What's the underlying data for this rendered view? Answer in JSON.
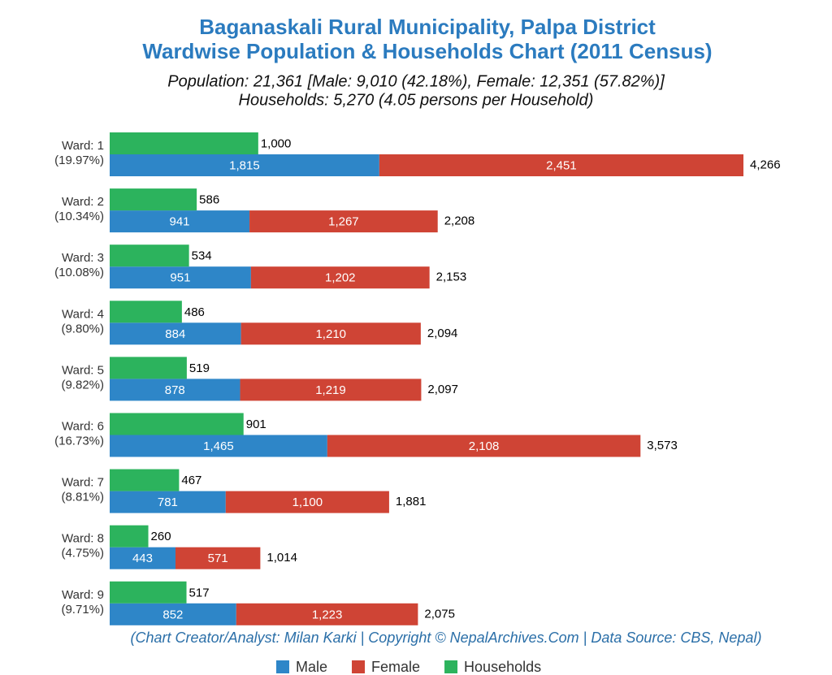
{
  "chart_data": {
    "type": "bar",
    "title": [
      "Baganaskali Rural Municipality, Palpa District",
      "Wardwise Population & Households Chart (2011 Census)"
    ],
    "subtitle": [
      "Population: 21,361 [Male: 9,010 (42.18%), Female: 12,351 (57.82%)]",
      "Households: 5,270 (4.05 persons per Household)"
    ],
    "caption": "(Chart Creator/Analyst: Milan Karki | Copyright © NepalArchives.Com | Data Source: CBS, Nepal)",
    "categories": [
      "Ward: 1",
      "Ward: 2",
      "Ward: 3",
      "Ward: 4",
      "Ward: 5",
      "Ward: 6",
      "Ward: 7",
      "Ward: 8",
      "Ward: 9"
    ],
    "category_shares": {
      "values": [
        19.97,
        10.34,
        10.08,
        9.8,
        9.82,
        16.73,
        8.81,
        4.75,
        9.71
      ],
      "value_labels": [
        "(19.97%)",
        "(10.34%)",
        "(10.08%)",
        "(9.80%)",
        "(9.82%)",
        "(16.73%)",
        "(8.81%)",
        "(4.75%)",
        "(9.71%)"
      ]
    },
    "series": [
      {
        "name": "Male",
        "color": "#2e86c8",
        "stacked": true,
        "values": [
          1815,
          941,
          951,
          884,
          878,
          1465,
          781,
          443,
          852
        ],
        "value_labels": [
          "1,815",
          "941",
          "951",
          "884",
          "878",
          "1,465",
          "781",
          "443",
          "852"
        ]
      },
      {
        "name": "Female",
        "color": "#cf4435",
        "stacked": true,
        "values": [
          2451,
          1267,
          1202,
          1210,
          1219,
          2108,
          1100,
          571,
          1223
        ],
        "value_labels": [
          "2,451",
          "1,267",
          "1,202",
          "1,210",
          "1,219",
          "2,108",
          "1,100",
          "571",
          "1,223"
        ]
      },
      {
        "name": "Households",
        "color": "#2cb35d",
        "stacked": false,
        "values": [
          1000,
          586,
          534,
          486,
          519,
          901,
          467,
          260,
          517
        ],
        "value_labels": [
          "1,000",
          "586",
          "534",
          "486",
          "519",
          "901",
          "467",
          "260",
          "517"
        ]
      }
    ],
    "totals": {
      "values": [
        4266,
        2208,
        2153,
        2094,
        2097,
        3573,
        1881,
        1014,
        2075
      ],
      "value_labels": [
        "4,266",
        "2,208",
        "2,153",
        "2,094",
        "2,097",
        "3,573",
        "1,881",
        "1,014",
        "2,075"
      ]
    }
  }
}
